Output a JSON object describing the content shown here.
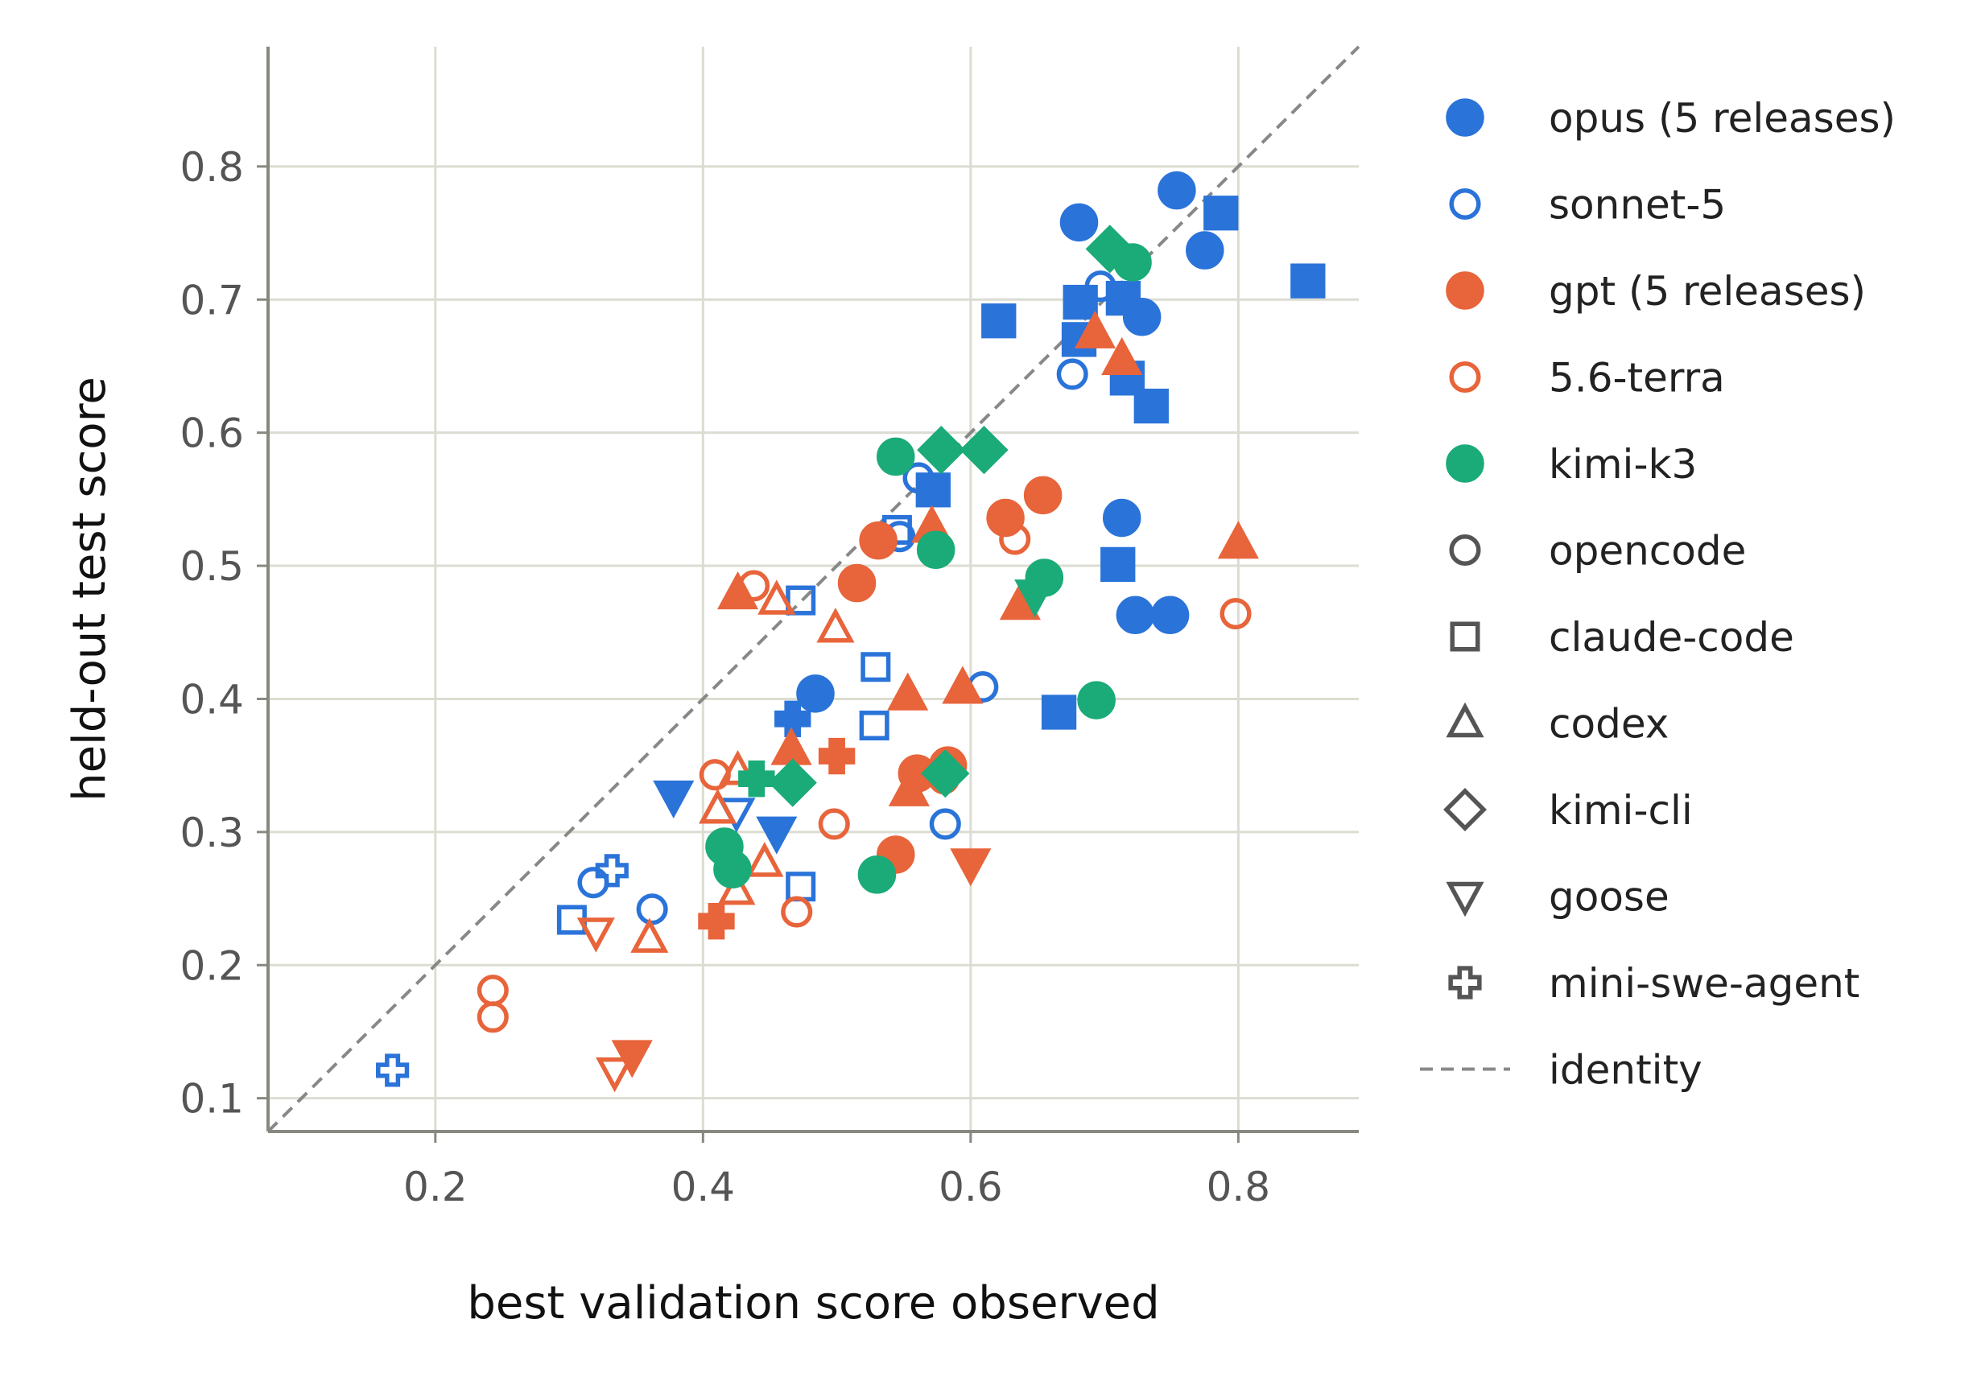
{
  "chart_data": {
    "type": "scatter",
    "title": "",
    "xlabel": "best validation score observed",
    "ylabel": "held-out test score",
    "xlim": [
      0.075,
      0.89
    ],
    "ylim": [
      0.075,
      0.89
    ],
    "xticks": [
      "0.2",
      "0.4",
      "0.6",
      "0.8"
    ],
    "yticks": [
      "0.1",
      "0.2",
      "0.3",
      "0.4",
      "0.5",
      "0.6",
      "0.7",
      "0.8"
    ],
    "grid": true,
    "legend_position": "right",
    "identity_line": true,
    "series": [
      {
        "name": "opus (5 releases)",
        "color": "#2a73d9",
        "filled": true
      },
      {
        "name": "sonnet-5",
        "color": "#2a73d9",
        "filled": false
      },
      {
        "name": "gpt (5 releases)",
        "color": "#e8643a",
        "filled": true
      },
      {
        "name": "5.6-terra",
        "color": "#e8643a",
        "filled": false
      },
      {
        "name": "kimi-k3",
        "color": "#1aab78",
        "filled": true
      }
    ],
    "harnesses": [
      {
        "name": "opencode",
        "marker": "circle"
      },
      {
        "name": "claude-code",
        "marker": "square"
      },
      {
        "name": "codex",
        "marker": "triangle-up"
      },
      {
        "name": "kimi-cli",
        "marker": "diamond"
      },
      {
        "name": "goose",
        "marker": "triangle-down"
      },
      {
        "name": "mini-swe-agent",
        "marker": "plus"
      }
    ],
    "legend": [
      {
        "label": "opus (5 releases)",
        "marker": "circle",
        "color": "#2a73d9",
        "filled": true
      },
      {
        "label": "sonnet-5",
        "marker": "circle",
        "color": "#2a73d9",
        "filled": false
      },
      {
        "label": "gpt (5 releases)",
        "marker": "circle",
        "color": "#e8643a",
        "filled": true
      },
      {
        "label": "5.6-terra",
        "marker": "circle",
        "color": "#e8643a",
        "filled": false
      },
      {
        "label": "kimi-k3",
        "marker": "circle",
        "color": "#1aab78",
        "filled": true
      },
      {
        "label": "opencode",
        "marker": "circle",
        "color": "#555555",
        "filled": false
      },
      {
        "label": "claude-code",
        "marker": "square",
        "color": "#555555",
        "filled": false
      },
      {
        "label": "codex",
        "marker": "triangle-up",
        "color": "#555555",
        "filled": false
      },
      {
        "label": "kimi-cli",
        "marker": "diamond",
        "color": "#555555",
        "filled": false
      },
      {
        "label": "goose",
        "marker": "triangle-down",
        "color": "#555555",
        "filled": false
      },
      {
        "label": "mini-swe-agent",
        "marker": "plus",
        "color": "#555555",
        "filled": false
      },
      {
        "label": "identity",
        "marker": "dashed-line",
        "color": "#888888",
        "filled": false
      }
    ],
    "points": [
      {
        "series": "opus (5 releases)",
        "marker": "circle",
        "x": 0.754,
        "y": 0.782
      },
      {
        "series": "opus (5 releases)",
        "marker": "circle",
        "x": 0.681,
        "y": 0.758
      },
      {
        "series": "opus (5 releases)",
        "marker": "circle",
        "x": 0.775,
        "y": 0.737
      },
      {
        "series": "opus (5 releases)",
        "marker": "circle",
        "x": 0.728,
        "y": 0.687
      },
      {
        "series": "opus (5 releases)",
        "marker": "circle",
        "x": 0.713,
        "y": 0.536
      },
      {
        "series": "opus (5 releases)",
        "marker": "circle",
        "x": 0.723,
        "y": 0.463
      },
      {
        "series": "opus (5 releases)",
        "marker": "circle",
        "x": 0.749,
        "y": 0.463
      },
      {
        "series": "opus (5 releases)",
        "marker": "circle",
        "x": 0.484,
        "y": 0.404
      },
      {
        "series": "opus (5 releases)",
        "marker": "square",
        "x": 0.787,
        "y": 0.765
      },
      {
        "series": "opus (5 releases)",
        "marker": "square",
        "x": 0.852,
        "y": 0.714
      },
      {
        "series": "opus (5 releases)",
        "marker": "square",
        "x": 0.682,
        "y": 0.698
      },
      {
        "series": "opus (5 releases)",
        "marker": "square",
        "x": 0.714,
        "y": 0.701
      },
      {
        "series": "opus (5 releases)",
        "marker": "square",
        "x": 0.621,
        "y": 0.684
      },
      {
        "series": "opus (5 releases)",
        "marker": "square",
        "x": 0.681,
        "y": 0.67
      },
      {
        "series": "opus (5 releases)",
        "marker": "square",
        "x": 0.717,
        "y": 0.641
      },
      {
        "series": "opus (5 releases)",
        "marker": "square",
        "x": 0.735,
        "y": 0.62
      },
      {
        "series": "opus (5 releases)",
        "marker": "square",
        "x": 0.572,
        "y": 0.557
      },
      {
        "series": "opus (5 releases)",
        "marker": "square",
        "x": 0.71,
        "y": 0.501
      },
      {
        "series": "opus (5 releases)",
        "marker": "square",
        "x": 0.666,
        "y": 0.39
      },
      {
        "series": "opus (5 releases)",
        "marker": "triangle-down",
        "x": 0.378,
        "y": 0.327
      },
      {
        "series": "opus (5 releases)",
        "marker": "triangle-down",
        "x": 0.455,
        "y": 0.3
      },
      {
        "series": "opus (5 releases)",
        "marker": "plus",
        "x": 0.467,
        "y": 0.385
      },
      {
        "series": "sonnet-5",
        "marker": "circle",
        "x": 0.697,
        "y": 0.71
      },
      {
        "series": "sonnet-5",
        "marker": "circle",
        "x": 0.676,
        "y": 0.644
      },
      {
        "series": "sonnet-5",
        "marker": "circle",
        "x": 0.561,
        "y": 0.566
      },
      {
        "series": "sonnet-5",
        "marker": "circle",
        "x": 0.547,
        "y": 0.522
      },
      {
        "series": "sonnet-5",
        "marker": "circle",
        "x": 0.609,
        "y": 0.409
      },
      {
        "series": "sonnet-5",
        "marker": "circle",
        "x": 0.581,
        "y": 0.306
      },
      {
        "series": "sonnet-5",
        "marker": "circle",
        "x": 0.318,
        "y": 0.262
      },
      {
        "series": "sonnet-5",
        "marker": "circle",
        "x": 0.362,
        "y": 0.242
      },
      {
        "series": "sonnet-5",
        "marker": "square",
        "x": 0.545,
        "y": 0.527
      },
      {
        "series": "sonnet-5",
        "marker": "square",
        "x": 0.473,
        "y": 0.474
      },
      {
        "series": "sonnet-5",
        "marker": "square",
        "x": 0.529,
        "y": 0.424
      },
      {
        "series": "sonnet-5",
        "marker": "square",
        "x": 0.528,
        "y": 0.38
      },
      {
        "series": "sonnet-5",
        "marker": "square",
        "x": 0.473,
        "y": 0.259
      },
      {
        "series": "sonnet-5",
        "marker": "square",
        "x": 0.302,
        "y": 0.234
      },
      {
        "series": "sonnet-5",
        "marker": "triangle-down",
        "x": 0.425,
        "y": 0.315
      },
      {
        "series": "sonnet-5",
        "marker": "plus",
        "x": 0.332,
        "y": 0.271
      },
      {
        "series": "sonnet-5",
        "marker": "plus",
        "x": 0.168,
        "y": 0.121
      },
      {
        "series": "gpt (5 releases)",
        "marker": "circle",
        "x": 0.654,
        "y": 0.553
      },
      {
        "series": "gpt (5 releases)",
        "marker": "circle",
        "x": 0.626,
        "y": 0.536
      },
      {
        "series": "gpt (5 releases)",
        "marker": "circle",
        "x": 0.531,
        "y": 0.519
      },
      {
        "series": "gpt (5 releases)",
        "marker": "circle",
        "x": 0.515,
        "y": 0.487
      },
      {
        "series": "gpt (5 releases)",
        "marker": "circle",
        "x": 0.583,
        "y": 0.35
      },
      {
        "series": "gpt (5 releases)",
        "marker": "circle",
        "x": 0.56,
        "y": 0.344
      },
      {
        "series": "gpt (5 releases)",
        "marker": "circle",
        "x": 0.544,
        "y": 0.283
      },
      {
        "series": "gpt (5 releases)",
        "marker": "triangle-up",
        "x": 0.693,
        "y": 0.675
      },
      {
        "series": "gpt (5 releases)",
        "marker": "triangle-up",
        "x": 0.713,
        "y": 0.655
      },
      {
        "series": "gpt (5 releases)",
        "marker": "triangle-up",
        "x": 0.571,
        "y": 0.529
      },
      {
        "series": "gpt (5 releases)",
        "marker": "triangle-up",
        "x": 0.8,
        "y": 0.517
      },
      {
        "series": "gpt (5 releases)",
        "marker": "triangle-up",
        "x": 0.426,
        "y": 0.479
      },
      {
        "series": "gpt (5 releases)",
        "marker": "triangle-up",
        "x": 0.637,
        "y": 0.471
      },
      {
        "series": "gpt (5 releases)",
        "marker": "triangle-up",
        "x": 0.553,
        "y": 0.403
      },
      {
        "series": "gpt (5 releases)",
        "marker": "triangle-up",
        "x": 0.594,
        "y": 0.408
      },
      {
        "series": "gpt (5 releases)",
        "marker": "triangle-up",
        "x": 0.466,
        "y": 0.362
      },
      {
        "series": "gpt (5 releases)",
        "marker": "triangle-up",
        "x": 0.554,
        "y": 0.331
      },
      {
        "series": "gpt (5 releases)",
        "marker": "triangle-down",
        "x": 0.6,
        "y": 0.276
      },
      {
        "series": "gpt (5 releases)",
        "marker": "triangle-down",
        "x": 0.347,
        "y": 0.132
      },
      {
        "series": "gpt (5 releases)",
        "marker": "plus",
        "x": 0.5,
        "y": 0.357
      },
      {
        "series": "gpt (5 releases)",
        "marker": "plus",
        "x": 0.41,
        "y": 0.233
      },
      {
        "series": "5.6-terra",
        "marker": "circle",
        "x": 0.798,
        "y": 0.464
      },
      {
        "series": "5.6-terra",
        "marker": "circle",
        "x": 0.633,
        "y": 0.52
      },
      {
        "series": "5.6-terra",
        "marker": "circle",
        "x": 0.438,
        "y": 0.485
      },
      {
        "series": "5.6-terra",
        "marker": "circle",
        "x": 0.409,
        "y": 0.343
      },
      {
        "series": "5.6-terra",
        "marker": "circle",
        "x": 0.58,
        "y": 0.34
      },
      {
        "series": "5.6-terra",
        "marker": "circle",
        "x": 0.498,
        "y": 0.306
      },
      {
        "series": "5.6-terra",
        "marker": "circle",
        "x": 0.47,
        "y": 0.24
      },
      {
        "series": "5.6-terra",
        "marker": "circle",
        "x": 0.243,
        "y": 0.181
      },
      {
        "series": "5.6-terra",
        "marker": "circle",
        "x": 0.243,
        "y": 0.161
      },
      {
        "series": "5.6-terra",
        "marker": "triangle-up",
        "x": 0.455,
        "y": 0.474
      },
      {
        "series": "5.6-terra",
        "marker": "triangle-up",
        "x": 0.499,
        "y": 0.453
      },
      {
        "series": "5.6-terra",
        "marker": "triangle-up",
        "x": 0.426,
        "y": 0.346
      },
      {
        "series": "5.6-terra",
        "marker": "triangle-up",
        "x": 0.411,
        "y": 0.317
      },
      {
        "series": "5.6-terra",
        "marker": "triangle-up",
        "x": 0.446,
        "y": 0.277
      },
      {
        "series": "5.6-terra",
        "marker": "triangle-up",
        "x": 0.425,
        "y": 0.256
      },
      {
        "series": "5.6-terra",
        "marker": "triangle-up",
        "x": 0.36,
        "y": 0.22
      },
      {
        "series": "5.6-terra",
        "marker": "triangle-down",
        "x": 0.32,
        "y": 0.225
      },
      {
        "series": "5.6-terra",
        "marker": "triangle-down",
        "x": 0.334,
        "y": 0.12
      },
      {
        "series": "kimi-k3",
        "marker": "circle",
        "x": 0.721,
        "y": 0.728
      },
      {
        "series": "kimi-k3",
        "marker": "circle",
        "x": 0.544,
        "y": 0.582
      },
      {
        "series": "kimi-k3",
        "marker": "circle",
        "x": 0.574,
        "y": 0.512
      },
      {
        "series": "kimi-k3",
        "marker": "circle",
        "x": 0.655,
        "y": 0.491
      },
      {
        "series": "kimi-k3",
        "marker": "circle",
        "x": 0.694,
        "y": 0.399
      },
      {
        "series": "kimi-k3",
        "marker": "circle",
        "x": 0.416,
        "y": 0.289
      },
      {
        "series": "kimi-k3",
        "marker": "circle",
        "x": 0.422,
        "y": 0.272
      },
      {
        "series": "kimi-k3",
        "marker": "circle",
        "x": 0.53,
        "y": 0.268
      },
      {
        "series": "kimi-k3",
        "marker": "diamond",
        "x": 0.704,
        "y": 0.738
      },
      {
        "series": "kimi-k3",
        "marker": "diamond",
        "x": 0.578,
        "y": 0.587
      },
      {
        "series": "kimi-k3",
        "marker": "diamond",
        "x": 0.61,
        "y": 0.587
      },
      {
        "series": "kimi-k3",
        "marker": "diamond",
        "x": 0.581,
        "y": 0.344
      },
      {
        "series": "kimi-k3",
        "marker": "diamond",
        "x": 0.467,
        "y": 0.337
      },
      {
        "series": "kimi-k3",
        "marker": "triangle-down",
        "x": 0.648,
        "y": 0.478
      },
      {
        "series": "kimi-k3",
        "marker": "plus",
        "x": 0.44,
        "y": 0.34
      }
    ]
  }
}
